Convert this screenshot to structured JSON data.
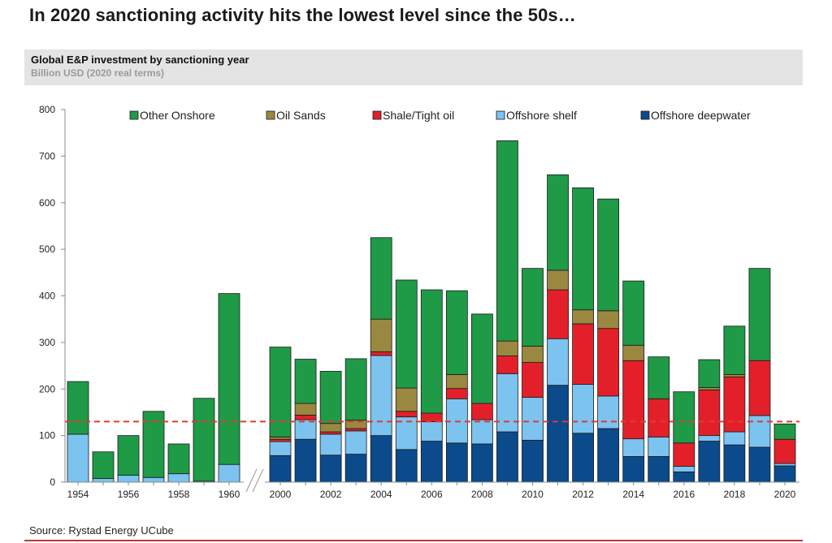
{
  "headline": "In 2020 sanctioning activity hits the lowest level since the 50s…",
  "subtitle": "Global E&P investment by sanctioning year",
  "units": "Billion USD (2020 real terms)",
  "source": "Source: Rystad Energy UCube",
  "chart_data": {
    "type": "bar",
    "stacked": true,
    "title": "Global E&P investment by sanctioning year",
    "ylabel": "Billion USD (2020 real terms)",
    "xlabel": "",
    "ylim": [
      0,
      800
    ],
    "yticks": [
      0,
      100,
      200,
      300,
      400,
      500,
      600,
      700,
      800
    ],
    "axis_break": "between 1960 and 2000",
    "categories": [
      "1954",
      "1955",
      "1956",
      "1957",
      "1958",
      "1959",
      "1960",
      "2000",
      "2001",
      "2002",
      "2003",
      "2004",
      "2005",
      "2006",
      "2007",
      "2008",
      "2009",
      "2010",
      "2011",
      "2012",
      "2013",
      "2014",
      "2015",
      "2016",
      "2017",
      "2018",
      "2019",
      "2020"
    ],
    "xtick_labels": [
      "1954",
      "",
      "1956",
      "",
      "1958",
      "",
      "1960",
      "2000",
      "",
      "2002",
      "",
      "2004",
      "",
      "2006",
      "",
      "2008",
      "",
      "2010",
      "",
      "2012",
      "",
      "2014",
      "",
      "2016",
      "",
      "2018",
      "",
      "2020"
    ],
    "reference_line": {
      "value": 130,
      "style": "dashed",
      "color": "#e03a2f"
    },
    "legend_position": "top",
    "series": [
      {
        "name": "Offshore deepwater",
        "color": "#0b4b8c",
        "values": [
          0,
          0,
          0,
          0,
          0,
          0,
          0,
          57,
          92,
          58,
          60,
          100,
          70,
          88,
          84,
          82,
          108,
          90,
          208,
          105,
          115,
          55,
          55,
          22,
          88,
          80,
          75,
          35
        ]
      },
      {
        "name": "Offshore shelf",
        "color": "#7cc3f0",
        "values": [
          103,
          8,
          15,
          10,
          18,
          2,
          38,
          30,
          42,
          45,
          50,
          172,
          70,
          42,
          95,
          52,
          125,
          92,
          100,
          105,
          70,
          38,
          42,
          12,
          12,
          28,
          68,
          5
        ]
      },
      {
        "name": "Shale/Tight oil",
        "color": "#e3202a",
        "values": [
          0,
          0,
          0,
          0,
          0,
          0,
          0,
          5,
          10,
          5,
          5,
          8,
          12,
          18,
          22,
          35,
          38,
          75,
          105,
          130,
          145,
          168,
          82,
          50,
          98,
          118,
          118,
          52
        ]
      },
      {
        "name": "Oil Sands",
        "color": "#9b8840",
        "values": [
          0,
          0,
          0,
          0,
          0,
          0,
          0,
          5,
          25,
          18,
          18,
          70,
          50,
          0,
          30,
          0,
          32,
          35,
          42,
          30,
          38,
          33,
          0,
          0,
          5,
          5,
          0,
          0
        ]
      },
      {
        "name": "Other Onshore",
        "color": "#1f9a47",
        "values": [
          113,
          57,
          85,
          142,
          64,
          178,
          367,
          193,
          95,
          112,
          132,
          175,
          232,
          265,
          180,
          192,
          430,
          167,
          205,
          262,
          240,
          138,
          90,
          110,
          60,
          104,
          198,
          33
        ]
      }
    ],
    "legend_order": [
      "Other Onshore",
      "Oil Sands",
      "Shale/Tight oil",
      "Offshore shelf",
      "Offshore deepwater"
    ]
  }
}
